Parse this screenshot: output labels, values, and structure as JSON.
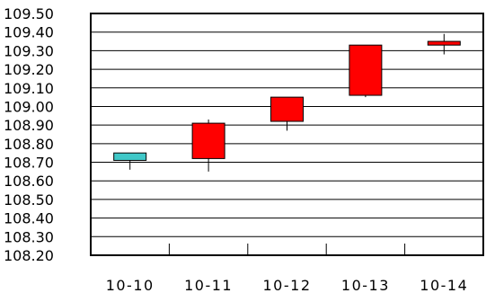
{
  "chart_data": {
    "type": "candlestick",
    "title": "",
    "xlabel": "",
    "ylabel": "",
    "ylim": [
      108.2,
      109.5
    ],
    "y_ticks": [
      "109.50",
      "109.40",
      "109.30",
      "109.20",
      "109.10",
      "109.00",
      "108.90",
      "108.80",
      "108.70",
      "108.60",
      "108.50",
      "108.40",
      "108.30",
      "108.20"
    ],
    "grid": true,
    "categories": [
      "10-10",
      "10-11",
      "10-12",
      "10-13",
      "10-14"
    ],
    "candles": [
      {
        "date": "10-10",
        "open": 108.71,
        "high": 108.75,
        "low": 108.66,
        "close": 108.75,
        "color": "#40C8C8"
      },
      {
        "date": "10-11",
        "open": 108.72,
        "high": 108.93,
        "low": 108.65,
        "close": 108.91,
        "color": "#FF0000"
      },
      {
        "date": "10-12",
        "open": 108.92,
        "high": 109.05,
        "low": 108.87,
        "close": 109.05,
        "color": "#FF0000"
      },
      {
        "date": "10-13",
        "open": 109.06,
        "high": 109.33,
        "low": 109.05,
        "close": 109.33,
        "color": "#FF0000"
      },
      {
        "date": "10-14",
        "open": 109.33,
        "high": 109.39,
        "low": 109.28,
        "close": 109.35,
        "color": "#FF0000"
      }
    ]
  }
}
